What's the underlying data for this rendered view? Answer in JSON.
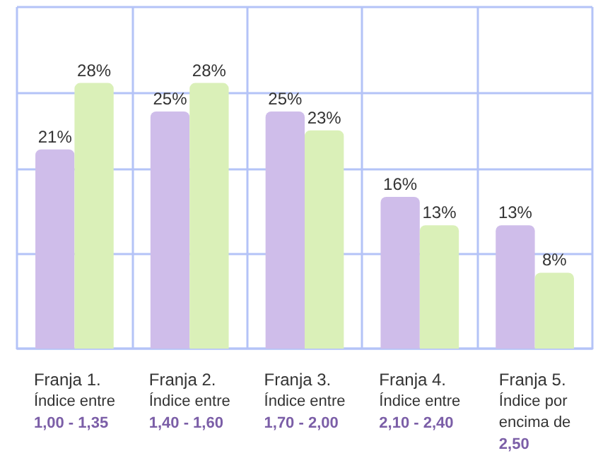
{
  "chart_data": {
    "type": "bar",
    "categories": [
      "Franja 1.\nÍndice entre\n1,00 - 1,35",
      "Franja 2.\nÍndice entre\n1,40 - 1,60",
      "Franja 3.\nÍndice entre\n1,70 - 2,00",
      "Franja 4.\nÍndice entre\n2,10 - 2,40",
      "Franja 5.\nÍndice por\nencima de\n2,50"
    ],
    "series": [
      {
        "color": "#cfbdea",
        "values": [
          21,
          25,
          25,
          16,
          13
        ],
        "value_labels": [
          "21%",
          "25%",
          "25%",
          "16%",
          "13%"
        ]
      },
      {
        "color": "#daf0b8",
        "values": [
          28,
          28,
          23,
          13,
          8
        ],
        "value_labels": [
          "28%",
          "28%",
          "23%",
          "13%",
          "8%"
        ]
      }
    ],
    "ylim": [
      0,
      36
    ],
    "yticks": [
      0,
      10,
      19,
      27,
      36
    ],
    "tick_labels": "x",
    "grid": true
  }
}
